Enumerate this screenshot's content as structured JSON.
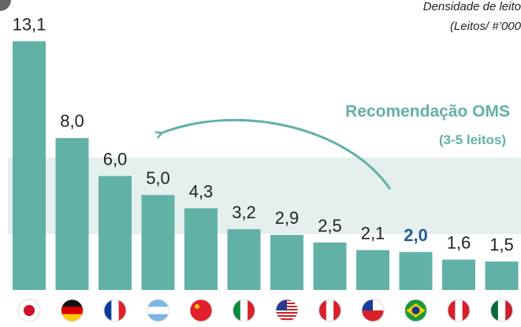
{
  "chart_data": {
    "type": "bar",
    "title": "Densidade de leito",
    "subtitle": "(Leitos/ #’000",
    "annotation": "Recomendação OMS",
    "annotation_sub": "(3-5 leitos)",
    "categories": [
      null,
      null,
      null,
      null,
      null,
      null,
      null,
      null,
      null,
      null,
      null,
      null
    ],
    "values": [
      13.1,
      8.0,
      6.0,
      5.0,
      4.3,
      3.2,
      2.9,
      2.5,
      2.1,
      2.0,
      1.6,
      1.5
    ],
    "value_labels": [
      "13,1",
      "8,0",
      "6,0",
      "5,0",
      "4,3",
      "3,2",
      "2,9",
      "2,5",
      "2,1",
      "2,0",
      "1,6",
      "1,5"
    ],
    "color": "#62b1a7",
    "highlight": 9,
    "highlight_color": "#1f5d99"
  }
}
